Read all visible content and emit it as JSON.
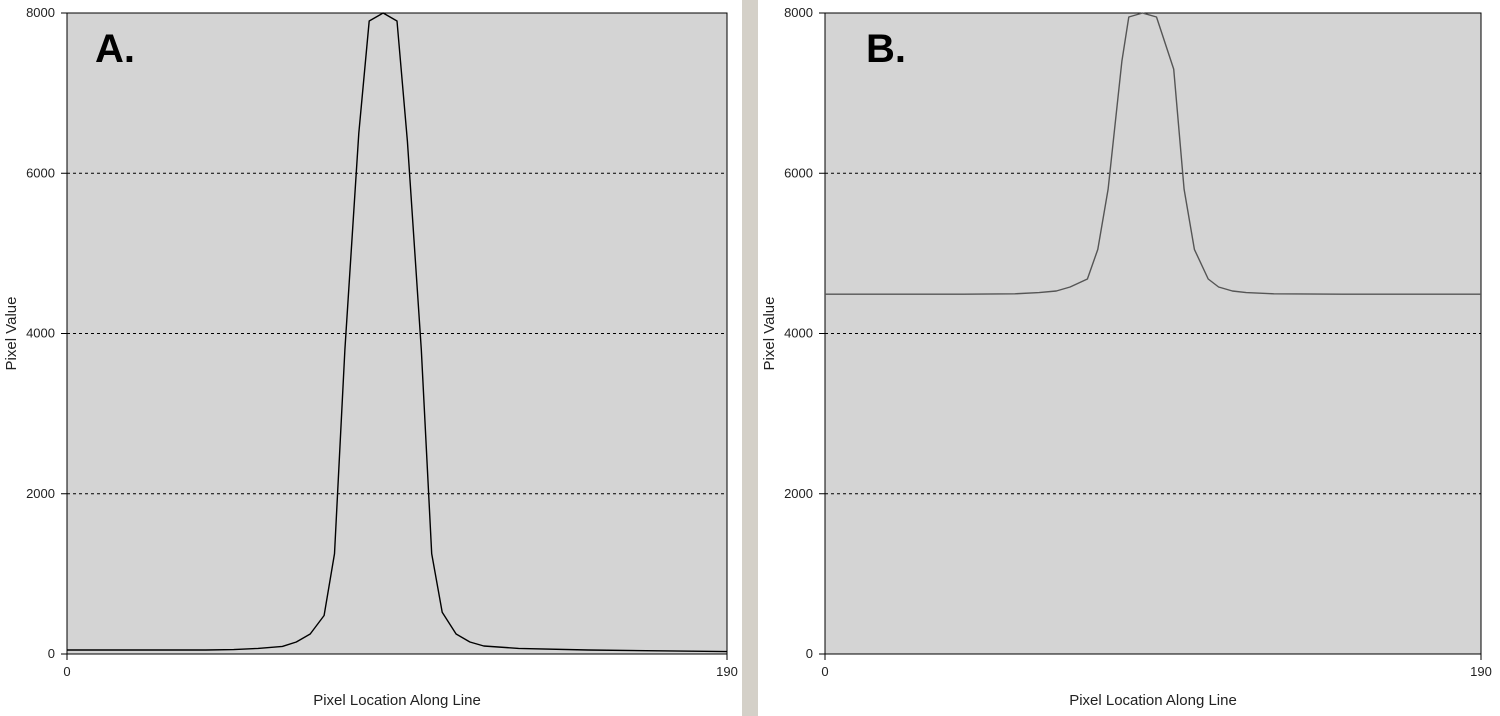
{
  "chart_data": [
    {
      "type": "line",
      "panel_label": "A.",
      "xlabel": "Pixel Location Along Line",
      "ylabel": "Pixel Value",
      "xlim": [
        0,
        190
      ],
      "ylim": [
        0,
        8000
      ],
      "x_ticks": [
        "0",
        "190"
      ],
      "y_ticks": [
        "0",
        "2000",
        "4000",
        "6000",
        "8000"
      ],
      "y_tick_values": [
        0,
        2000,
        4000,
        6000,
        8000
      ],
      "grid": "horizontal-dashed",
      "colors": {
        "plot_bg": "#d4d4d4",
        "line": "#000000",
        "grid": "#000000"
      },
      "series": [
        {
          "x": [
            0,
            20,
            40,
            48,
            55,
            62,
            66,
            70,
            74,
            77,
            80,
            84,
            87,
            91,
            95,
            98,
            102,
            105,
            108,
            112,
            116,
            120,
            130,
            150,
            170,
            190
          ],
          "values": [
            50,
            50,
            50,
            55,
            70,
            95,
            150,
            250,
            480,
            1250,
            3800,
            6500,
            7900,
            8000,
            7900,
            6400,
            3800,
            1250,
            520,
            250,
            150,
            100,
            70,
            50,
            40,
            30
          ]
        }
      ]
    },
    {
      "type": "line",
      "panel_label": "B.",
      "xlabel": "Pixel Location Along Line",
      "ylabel": "Pixel Value",
      "xlim": [
        0,
        190
      ],
      "ylim": [
        0,
        8000
      ],
      "x_ticks": [
        "0",
        "190"
      ],
      "y_ticks": [
        "0",
        "2000",
        "4000",
        "6000",
        "8000"
      ],
      "y_tick_values": [
        0,
        2000,
        4000,
        6000,
        8000
      ],
      "grid": "horizontal-dashed",
      "colors": {
        "plot_bg": "#d4d4d4",
        "line": "#555555",
        "grid": "#000000"
      },
      "series": [
        {
          "x": [
            0,
            20,
            40,
            55,
            62,
            67,
            71,
            76,
            79,
            82,
            86,
            88,
            92,
            96,
            101,
            104,
            107,
            111,
            114,
            118,
            122,
            130,
            150,
            170,
            190
          ],
          "values": [
            4490,
            4490,
            4490,
            4495,
            4510,
            4530,
            4580,
            4680,
            5050,
            5800,
            7400,
            7950,
            8000,
            7950,
            7300,
            5800,
            5050,
            4680,
            4580,
            4530,
            4510,
            4495,
            4490,
            4490,
            4490
          ]
        }
      ]
    }
  ]
}
